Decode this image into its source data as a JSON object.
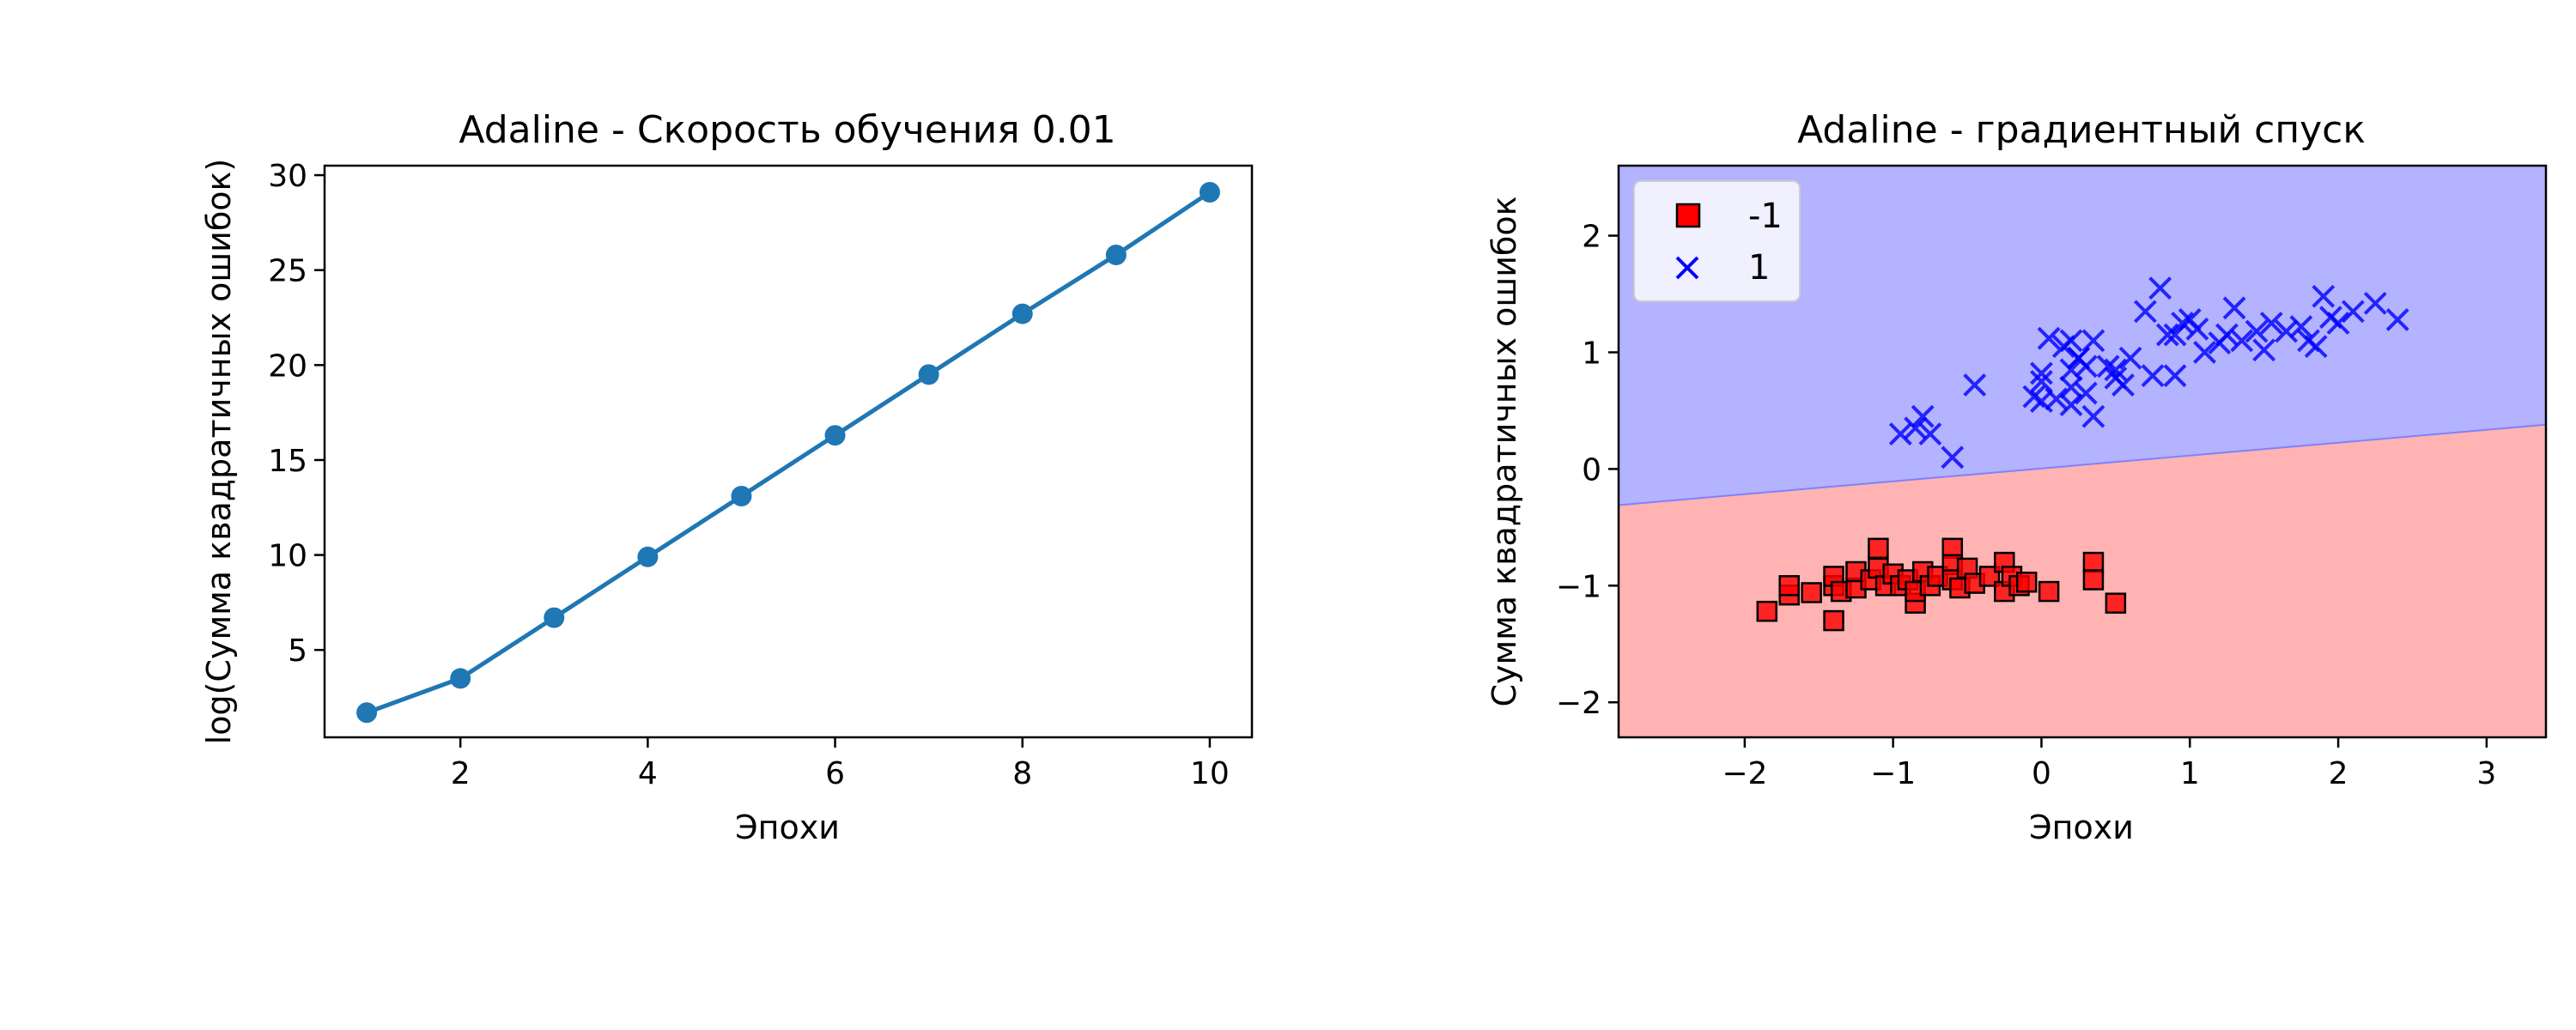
{
  "chart_data": [
    {
      "type": "line",
      "title": "Adaline - Скорость обучения 0.01",
      "xlabel": "Эпохи",
      "ylabel": "log(Сумма квадратичных ошибок)",
      "xlim": [
        0.55,
        10.45
      ],
      "ylim": [
        0.4,
        30.5
      ],
      "xticks": [
        2,
        4,
        6,
        8,
        10
      ],
      "yticks": [
        5,
        10,
        15,
        20,
        25,
        30
      ],
      "grid": false,
      "marker": "circle",
      "color": "#1f77b4",
      "series": [
        {
          "x": [
            1,
            2,
            3,
            4,
            5,
            6,
            7,
            8,
            9,
            10
          ],
          "y": [
            1.7,
            3.5,
            6.7,
            9.9,
            13.1,
            16.3,
            19.5,
            22.7,
            25.8,
            29.1
          ]
        }
      ]
    },
    {
      "type": "scatter",
      "title": "Adaline - градиентный спуск",
      "xlabel": "Эпохи",
      "ylabel": "Сумма квадратичных ошибок",
      "xlim": [
        -2.85,
        3.4
      ],
      "ylim": [
        -2.3,
        2.6
      ],
      "xticks": [
        -2,
        -1,
        0,
        1,
        2,
        3
      ],
      "yticks": [
        -2,
        -1,
        0,
        1,
        2
      ],
      "grid": false,
      "legend_position": "top-left",
      "decision_boundary": {
        "x": [
          -2.85,
          3.4
        ],
        "y": [
          -0.31,
          0.38
        ]
      },
      "regions": [
        {
          "label": "1",
          "side": "above",
          "color": "#b3b3ff"
        },
        {
          "label": "-1",
          "side": "below",
          "color": "#ffb3b3"
        }
      ],
      "series": [
        {
          "name": "-1",
          "marker": "square",
          "color": "#ff0000",
          "x": [
            -1.85,
            -1.7,
            -1.7,
            -1.55,
            -1.4,
            -1.4,
            -1.4,
            -1.35,
            -1.25,
            -1.25,
            -1.15,
            -1.1,
            -1.1,
            -1.05,
            -1.0,
            -0.95,
            -0.9,
            -0.85,
            -0.85,
            -0.8,
            -0.75,
            -0.7,
            -0.6,
            -0.6,
            -0.6,
            -0.55,
            -0.5,
            -0.45,
            -0.35,
            -0.25,
            -0.25,
            -0.2,
            -0.15,
            -0.1,
            0.05,
            0.35,
            0.35,
            0.5
          ],
          "y": [
            -1.22,
            -1.08,
            -1.0,
            -1.06,
            -1.3,
            -1.0,
            -0.92,
            -1.05,
            -1.02,
            -0.88,
            -0.95,
            -0.68,
            -0.85,
            -1.0,
            -0.9,
            -1.0,
            -0.95,
            -1.15,
            -1.05,
            -0.88,
            -1.0,
            -0.92,
            -0.68,
            -0.82,
            -0.95,
            -1.02,
            -0.85,
            -0.98,
            -0.92,
            -0.8,
            -1.05,
            -0.92,
            -1.0,
            -0.97,
            -1.05,
            -0.8,
            -0.95,
            -1.15
          ]
        },
        {
          "name": "1",
          "marker": "x",
          "color": "#0000ff",
          "x": [
            -0.95,
            -0.85,
            -0.8,
            -0.75,
            -0.6,
            -0.45,
            0.05,
            0.1,
            0.15,
            0.2,
            0.2,
            0.2,
            0.25,
            0.3,
            0.3,
            0.35,
            0.35,
            0.45,
            0.5,
            0.55,
            0.6,
            0.7,
            0.75,
            0.8,
            0.85,
            0.9,
            0.95,
            1.0,
            1.05,
            1.1,
            1.2,
            1.25,
            1.3,
            1.35,
            1.45,
            1.5,
            1.55,
            1.65,
            1.75,
            1.8,
            1.85,
            1.9,
            1.95,
            2.0,
            2.1,
            2.25,
            2.4,
            0.5,
            -0.05,
            0.0,
            0.0,
            0.0,
            0.2,
            0.25,
            0.9
          ],
          "y": [
            0.3,
            0.35,
            0.45,
            0.3,
            0.1,
            0.72,
            1.12,
            0.6,
            1.05,
            0.85,
            0.55,
            1.1,
            0.95,
            0.88,
            0.65,
            0.45,
            1.1,
            0.88,
            0.78,
            0.72,
            0.95,
            1.35,
            0.8,
            1.55,
            1.15,
            0.8,
            1.25,
            1.28,
            1.2,
            1.0,
            1.08,
            1.15,
            1.38,
            1.1,
            1.18,
            1.02,
            1.25,
            1.18,
            1.22,
            1.1,
            1.05,
            1.48,
            1.3,
            1.25,
            1.35,
            1.42,
            1.28,
            0.85,
            0.62,
            0.75,
            0.58,
            0.82,
            0.7,
            0.95,
            1.15
          ]
        }
      ]
    }
  ]
}
